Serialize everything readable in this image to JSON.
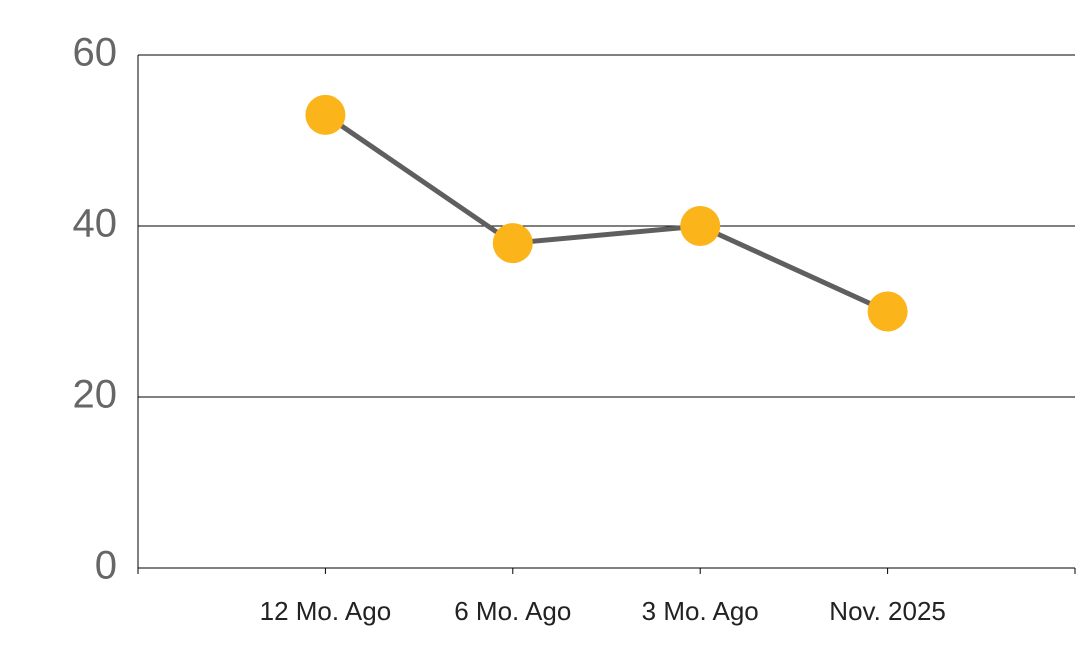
{
  "chart_data": {
    "type": "line",
    "categories": [
      "12 Mo. Ago",
      "6 Mo. Ago",
      "3 Mo. Ago",
      "Nov. 2025"
    ],
    "series": [
      {
        "values": [
          53,
          38,
          40,
          30
        ],
        "color": "#5f5f5f",
        "marker_color": "#fbb51a"
      }
    ],
    "ylim": [
      0,
      60
    ],
    "yticks": [
      0,
      20,
      40,
      60
    ],
    "grid": true
  }
}
